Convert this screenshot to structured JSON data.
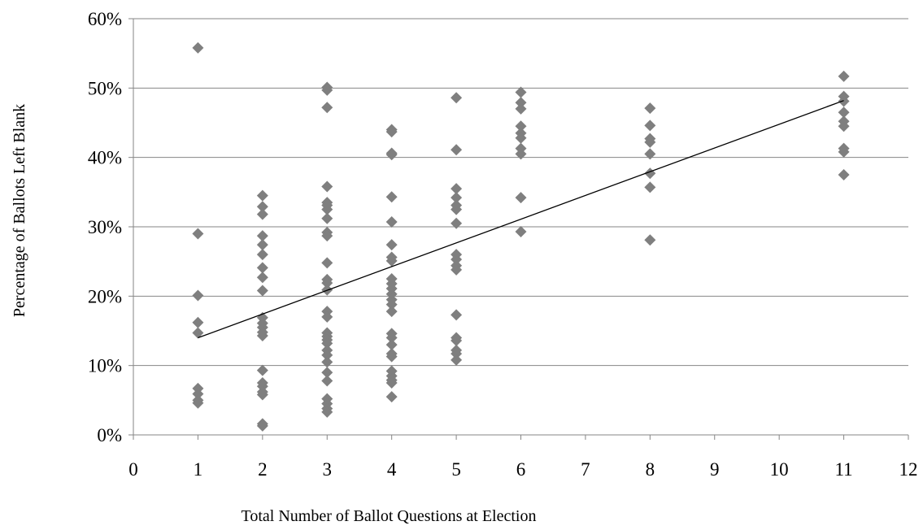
{
  "chart_data": {
    "type": "scatter",
    "title": "",
    "xlabel": "Total Number of Ballot Questions at Election",
    "ylabel": "Percentage of Ballots Left Blank",
    "xlim": [
      0,
      12
    ],
    "ylim": [
      0,
      0.6
    ],
    "x_ticks": [
      0,
      1,
      2,
      3,
      4,
      5,
      6,
      7,
      8,
      9,
      10,
      11,
      12
    ],
    "x_tick_labels": [
      "0",
      "1",
      "2",
      "3",
      "4",
      "5",
      "6",
      "7",
      "8",
      "9",
      "10",
      "11",
      "12"
    ],
    "y_ticks": [
      0,
      0.1,
      0.2,
      0.3,
      0.4,
      0.5,
      0.6
    ],
    "y_tick_labels": [
      "0%",
      "10%",
      "20%",
      "30%",
      "40%",
      "50%",
      "60%"
    ],
    "grid": "horizontal",
    "legend": "none",
    "colors": {
      "marker": "#7f7f7f",
      "trendline": "#000000",
      "grid": "#868686",
      "axis": "#868686"
    },
    "series": [
      {
        "marker": "diamond",
        "points": [
          [
            1,
            0.558
          ],
          [
            1,
            0.29
          ],
          [
            1,
            0.201
          ],
          [
            1,
            0.162
          ],
          [
            1,
            0.147
          ],
          [
            1,
            0.067
          ],
          [
            1,
            0.059
          ],
          [
            1,
            0.05
          ],
          [
            1,
            0.046
          ],
          [
            2,
            0.345
          ],
          [
            2,
            0.329
          ],
          [
            2,
            0.318
          ],
          [
            2,
            0.287
          ],
          [
            2,
            0.274
          ],
          [
            2,
            0.26
          ],
          [
            2,
            0.241
          ],
          [
            2,
            0.227
          ],
          [
            2,
            0.208
          ],
          [
            2,
            0.169
          ],
          [
            2,
            0.161
          ],
          [
            2,
            0.155
          ],
          [
            2,
            0.148
          ],
          [
            2,
            0.143
          ],
          [
            2,
            0.093
          ],
          [
            2,
            0.075
          ],
          [
            2,
            0.07
          ],
          [
            2,
            0.062
          ],
          [
            2,
            0.058
          ],
          [
            2,
            0.016
          ],
          [
            2,
            0.013
          ],
          [
            3,
            0.501
          ],
          [
            3,
            0.497
          ],
          [
            3,
            0.472
          ],
          [
            3,
            0.358
          ],
          [
            3,
            0.335
          ],
          [
            3,
            0.331
          ],
          [
            3,
            0.325
          ],
          [
            3,
            0.312
          ],
          [
            3,
            0.292
          ],
          [
            3,
            0.287
          ],
          [
            3,
            0.248
          ],
          [
            3,
            0.224
          ],
          [
            3,
            0.219
          ],
          [
            3,
            0.209
          ],
          [
            3,
            0.178
          ],
          [
            3,
            0.17
          ],
          [
            3,
            0.147
          ],
          [
            3,
            0.142
          ],
          [
            3,
            0.137
          ],
          [
            3,
            0.132
          ],
          [
            3,
            0.122
          ],
          [
            3,
            0.115
          ],
          [
            3,
            0.105
          ],
          [
            3,
            0.09
          ],
          [
            3,
            0.078
          ],
          [
            3,
            0.052
          ],
          [
            3,
            0.045
          ],
          [
            3,
            0.038
          ],
          [
            3,
            0.033
          ],
          [
            4,
            0.44
          ],
          [
            4,
            0.437
          ],
          [
            4,
            0.406
          ],
          [
            4,
            0.404
          ],
          [
            4,
            0.343
          ],
          [
            4,
            0.307
          ],
          [
            4,
            0.274
          ],
          [
            4,
            0.256
          ],
          [
            4,
            0.251
          ],
          [
            4,
            0.225
          ],
          [
            4,
            0.218
          ],
          [
            4,
            0.211
          ],
          [
            4,
            0.203
          ],
          [
            4,
            0.195
          ],
          [
            4,
            0.188
          ],
          [
            4,
            0.178
          ],
          [
            4,
            0.146
          ],
          [
            4,
            0.14
          ],
          [
            4,
            0.13
          ],
          [
            4,
            0.117
          ],
          [
            4,
            0.113
          ],
          [
            4,
            0.092
          ],
          [
            4,
            0.085
          ],
          [
            4,
            0.079
          ],
          [
            4,
            0.075
          ],
          [
            4,
            0.055
          ],
          [
            5,
            0.486
          ],
          [
            5,
            0.411
          ],
          [
            5,
            0.355
          ],
          [
            5,
            0.342
          ],
          [
            5,
            0.331
          ],
          [
            5,
            0.325
          ],
          [
            5,
            0.305
          ],
          [
            5,
            0.26
          ],
          [
            5,
            0.253
          ],
          [
            5,
            0.244
          ],
          [
            5,
            0.238
          ],
          [
            5,
            0.173
          ],
          [
            5,
            0.14
          ],
          [
            5,
            0.136
          ],
          [
            5,
            0.122
          ],
          [
            5,
            0.117
          ],
          [
            5,
            0.108
          ],
          [
            6,
            0.494
          ],
          [
            6,
            0.479
          ],
          [
            6,
            0.47
          ],
          [
            6,
            0.445
          ],
          [
            6,
            0.435
          ],
          [
            6,
            0.428
          ],
          [
            6,
            0.413
          ],
          [
            6,
            0.405
          ],
          [
            6,
            0.342
          ],
          [
            6,
            0.293
          ],
          [
            8,
            0.471
          ],
          [
            8,
            0.446
          ],
          [
            8,
            0.427
          ],
          [
            8,
            0.422
          ],
          [
            8,
            0.405
          ],
          [
            8,
            0.377
          ],
          [
            8,
            0.357
          ],
          [
            8,
            0.281
          ],
          [
            11,
            0.517
          ],
          [
            11,
            0.488
          ],
          [
            11,
            0.481
          ],
          [
            11,
            0.465
          ],
          [
            11,
            0.452
          ],
          [
            11,
            0.445
          ],
          [
            11,
            0.413
          ],
          [
            11,
            0.408
          ],
          [
            11,
            0.375
          ]
        ]
      }
    ],
    "trendline": {
      "type": "linear",
      "from": [
        1,
        0.14
      ],
      "to": [
        11,
        0.482
      ]
    }
  }
}
